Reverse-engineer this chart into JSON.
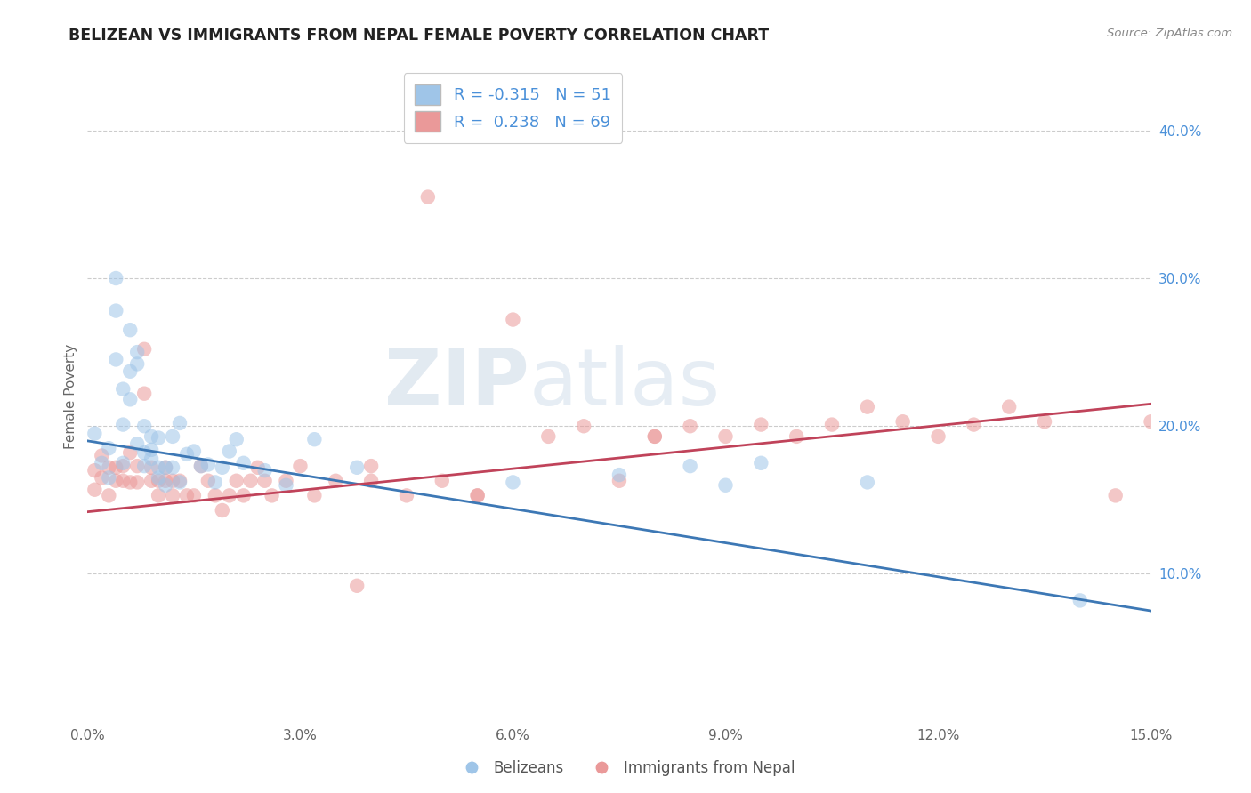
{
  "title": "BELIZEAN VS IMMIGRANTS FROM NEPAL FEMALE POVERTY CORRELATION CHART",
  "source": "Source: ZipAtlas.com",
  "ylabel": "Female Poverty",
  "xlim": [
    0.0,
    0.15
  ],
  "ylim": [
    0.0,
    0.44
  ],
  "xticks": [
    0.0,
    0.03,
    0.06,
    0.09,
    0.12,
    0.15
  ],
  "xtick_labels": [
    "0.0%",
    "3.0%",
    "6.0%",
    "9.0%",
    "12.0%",
    "15.0%"
  ],
  "yticks_right": [
    0.1,
    0.2,
    0.3,
    0.4
  ],
  "ytick_labels_right": [
    "10.0%",
    "20.0%",
    "30.0%",
    "40.0%"
  ],
  "legend_labels": [
    "Belizeans",
    "Immigrants from Nepal"
  ],
  "blue_R": -0.315,
  "blue_N": 51,
  "pink_R": 0.238,
  "pink_N": 69,
  "blue_color": "#9fc5e8",
  "pink_color": "#ea9999",
  "blue_line_color": "#3d78b5",
  "pink_line_color": "#c0435a",
  "watermark_zip": "ZIP",
  "watermark_atlas": "atlas",
  "blue_line_x": [
    0.0,
    0.15
  ],
  "blue_line_y": [
    0.19,
    0.075
  ],
  "pink_line_x": [
    0.0,
    0.15
  ],
  "pink_line_y": [
    0.142,
    0.215
  ],
  "blue_scatter_x": [
    0.001,
    0.002,
    0.003,
    0.004,
    0.004,
    0.005,
    0.005,
    0.006,
    0.006,
    0.007,
    0.007,
    0.008,
    0.008,
    0.009,
    0.009,
    0.01,
    0.01,
    0.011,
    0.011,
    0.012,
    0.012,
    0.013,
    0.013,
    0.014,
    0.015,
    0.016,
    0.017,
    0.018,
    0.019,
    0.02,
    0.021,
    0.022,
    0.003,
    0.004,
    0.005,
    0.006,
    0.007,
    0.008,
    0.009,
    0.01,
    0.025,
    0.028,
    0.032,
    0.038,
    0.06,
    0.075,
    0.085,
    0.09,
    0.095,
    0.11,
    0.14
  ],
  "blue_scatter_y": [
    0.195,
    0.175,
    0.185,
    0.278,
    0.245,
    0.201,
    0.225,
    0.265,
    0.237,
    0.25,
    0.242,
    0.182,
    0.2,
    0.193,
    0.178,
    0.172,
    0.192,
    0.172,
    0.16,
    0.172,
    0.193,
    0.202,
    0.162,
    0.181,
    0.183,
    0.173,
    0.174,
    0.162,
    0.172,
    0.183,
    0.191,
    0.175,
    0.165,
    0.3,
    0.175,
    0.218,
    0.188,
    0.173,
    0.184,
    0.165,
    0.17,
    0.16,
    0.191,
    0.172,
    0.162,
    0.167,
    0.173,
    0.16,
    0.175,
    0.162,
    0.082
  ],
  "pink_scatter_x": [
    0.001,
    0.001,
    0.002,
    0.002,
    0.003,
    0.003,
    0.004,
    0.004,
    0.005,
    0.005,
    0.006,
    0.006,
    0.007,
    0.007,
    0.008,
    0.008,
    0.009,
    0.009,
    0.01,
    0.01,
    0.011,
    0.011,
    0.012,
    0.012,
    0.013,
    0.014,
    0.015,
    0.016,
    0.017,
    0.018,
    0.019,
    0.02,
    0.021,
    0.022,
    0.023,
    0.024,
    0.025,
    0.026,
    0.028,
    0.03,
    0.032,
    0.035,
    0.038,
    0.04,
    0.045,
    0.05,
    0.055,
    0.065,
    0.07,
    0.075,
    0.08,
    0.085,
    0.09,
    0.095,
    0.1,
    0.105,
    0.11,
    0.115,
    0.12,
    0.125,
    0.13,
    0.135,
    0.04,
    0.06,
    0.08,
    0.048,
    0.055,
    0.145,
    0.15
  ],
  "pink_scatter_y": [
    0.157,
    0.17,
    0.165,
    0.18,
    0.172,
    0.153,
    0.163,
    0.172,
    0.163,
    0.173,
    0.162,
    0.182,
    0.173,
    0.162,
    0.252,
    0.222,
    0.163,
    0.172,
    0.163,
    0.153,
    0.163,
    0.172,
    0.153,
    0.163,
    0.163,
    0.153,
    0.153,
    0.173,
    0.163,
    0.153,
    0.143,
    0.153,
    0.163,
    0.153,
    0.163,
    0.172,
    0.163,
    0.153,
    0.163,
    0.173,
    0.153,
    0.163,
    0.092,
    0.173,
    0.153,
    0.163,
    0.153,
    0.193,
    0.2,
    0.163,
    0.193,
    0.2,
    0.193,
    0.201,
    0.193,
    0.201,
    0.213,
    0.203,
    0.193,
    0.201,
    0.213,
    0.203,
    0.163,
    0.272,
    0.193,
    0.355,
    0.153,
    0.153,
    0.203
  ]
}
